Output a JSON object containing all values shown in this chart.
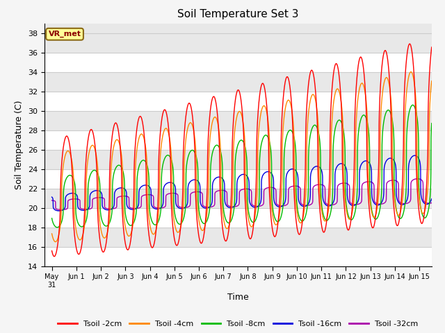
{
  "title": "Soil Temperature Set 3",
  "xlabel": "Time",
  "ylabel": "Soil Temperature (C)",
  "ylim": [
    14,
    39
  ],
  "yticks": [
    14,
    16,
    18,
    20,
    22,
    24,
    26,
    28,
    30,
    32,
    34,
    36,
    38
  ],
  "xlim_days": [
    -0.3,
    15.5
  ],
  "colors": {
    "Tsoil -2cm": "#ff0000",
    "Tsoil -4cm": "#ff8800",
    "Tsoil -8cm": "#00bb00",
    "Tsoil -16cm": "#0000dd",
    "Tsoil -32cm": "#aa00aa"
  },
  "background_color": "#e8e8e8",
  "grid_color": "#ffffff",
  "annotation_text": "VR_met",
  "annotation_bg": "#ffff99",
  "annotation_border": "#8b6914"
}
